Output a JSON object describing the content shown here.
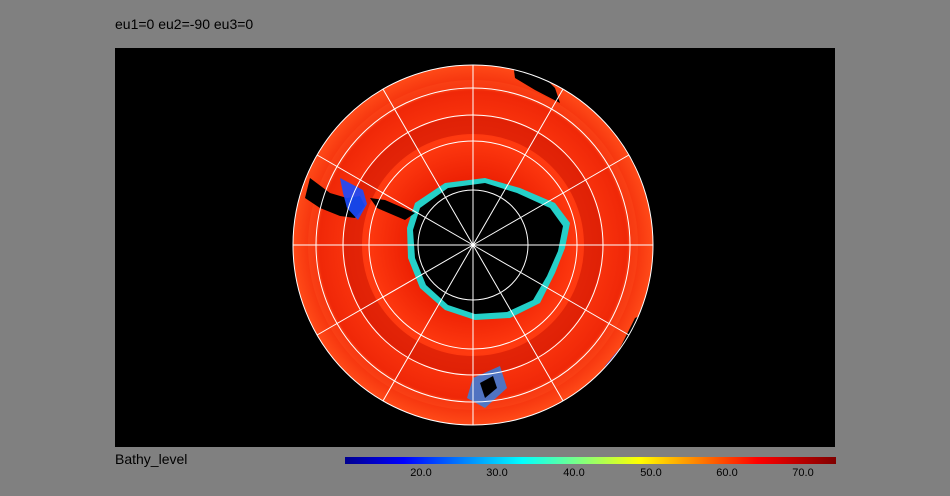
{
  "title": "eu1=0 eu2=-90 eu3=0",
  "variable": "Bathy_level",
  "colorbar": {
    "ticks": [
      "20.0",
      "30.0",
      "40.0",
      "50.0",
      "60.0",
      "70.0"
    ],
    "colors": [
      "#00008f",
      "#0000ff",
      "#0080ff",
      "#00ffff",
      "#80ff80",
      "#ffff00",
      "#ff8000",
      "#ff0000",
      "#800000"
    ]
  },
  "map": {
    "projection": "south-polar stereographic",
    "background": "#000000",
    "land_color": "#000000",
    "ocean_fill": "#ff3010",
    "grid_color": "#ffffff",
    "meridian_count": 12,
    "parallel_count": 4
  }
}
